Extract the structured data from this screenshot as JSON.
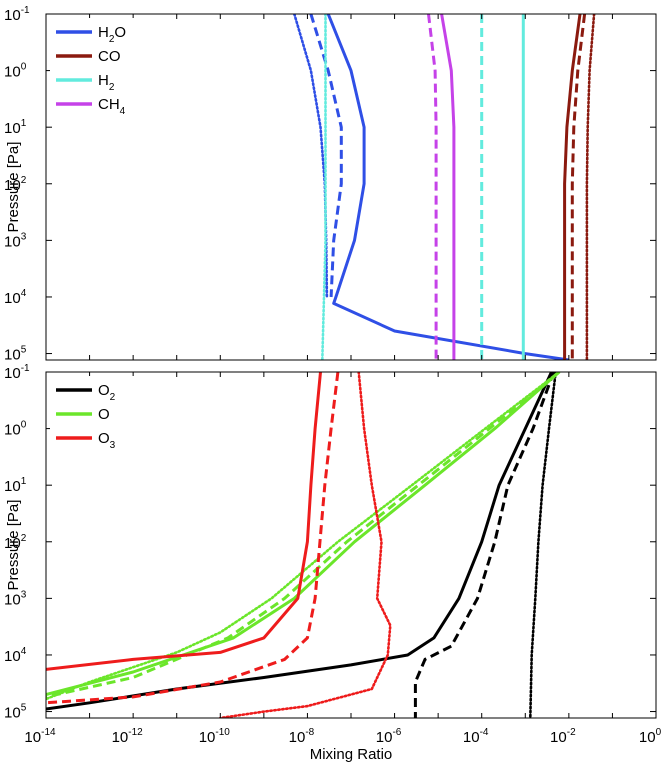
{
  "chart_data": [
    {
      "panel": "top",
      "type": "line",
      "xscale": "log",
      "yscale": "log",
      "y_inverted": true,
      "xlim": [
        1e-14,
        1
      ],
      "ylim": [
        0.1,
        130000
      ],
      "ylabel": "Pressure [Pa]",
      "xlabel": "",
      "yticks": [
        {
          "base": "10",
          "exp": "-1"
        },
        {
          "base": "10",
          "exp": "0"
        },
        {
          "base": "10",
          "exp": "1"
        },
        {
          "base": "10",
          "exp": "2"
        },
        {
          "base": "10",
          "exp": "3"
        },
        {
          "base": "10",
          "exp": "4"
        },
        {
          "base": "10",
          "exp": "5"
        }
      ],
      "legend": [
        {
          "base": "H",
          "sub": "2",
          "rest": "O",
          "color": "#2f4fe6"
        },
        {
          "base": "CO",
          "sub": "",
          "rest": "",
          "color": "#8b1a0f"
        },
        {
          "base": "H",
          "sub": "2",
          "rest": "",
          "color": "#62ebde"
        },
        {
          "base": "CH",
          "sub": "4",
          "rest": "",
          "color": "#c542e8"
        }
      ],
      "series": [
        {
          "species": "H2O",
          "style": "solid",
          "color": "#2f4fe6",
          "points": [
            [
              3e-08,
              0.1
            ],
            [
              1e-07,
              1
            ],
            [
              2e-07,
              10
            ],
            [
              2e-07,
              100
            ],
            [
              1.2e-07,
              1000
            ],
            [
              4.5e-08,
              10000
            ],
            [
              4e-08,
              13000
            ],
            [
              1e-06,
              40000
            ],
            [
              0.001,
              100000
            ],
            [
              0.01,
              130000
            ]
          ]
        },
        {
          "species": "H2O",
          "style": "dashed",
          "color": "#2f4fe6",
          "points": [
            [
              1.2e-08,
              0.1
            ],
            [
              3e-08,
              1
            ],
            [
              6e-08,
              10
            ],
            [
              6e-08,
              100
            ],
            [
              4e-08,
              1000
            ],
            [
              3.5e-08,
              10000
            ]
          ]
        },
        {
          "species": "H2O",
          "style": "dotted",
          "color": "#2f4fe6",
          "points": [
            [
              5e-09,
              0.1
            ],
            [
              1.2e-08,
              1
            ],
            [
              2e-08,
              10
            ],
            [
              2.5e-08,
              100
            ],
            [
              2.7e-08,
              1000
            ],
            [
              2.8e-08,
              10000
            ]
          ]
        },
        {
          "species": "CO",
          "style": "solid",
          "color": "#8b1a0f",
          "points": [
            [
              0.018,
              0.1
            ],
            [
              0.012,
              1
            ],
            [
              0.009,
              10
            ],
            [
              0.008,
              100
            ],
            [
              0.008,
              1000
            ],
            [
              0.008,
              10000
            ],
            [
              0.008,
              130000
            ]
          ]
        },
        {
          "species": "CO",
          "style": "dashed",
          "color": "#8b1a0f",
          "points": [
            [
              0.023,
              0.1
            ],
            [
              0.016,
              1
            ],
            [
              0.013,
              10
            ],
            [
              0.012,
              100
            ],
            [
              0.012,
              1000
            ],
            [
              0.012,
              10000
            ],
            [
              0.012,
              130000
            ]
          ]
        },
        {
          "species": "CO",
          "style": "dotted",
          "color": "#8b1a0f",
          "points": [
            [
              0.038,
              0.1
            ],
            [
              0.03,
              1
            ],
            [
              0.027,
              10
            ],
            [
              0.026,
              100
            ],
            [
              0.026,
              1000
            ],
            [
              0.026,
              10000
            ],
            [
              0.026,
              130000
            ]
          ]
        },
        {
          "species": "H2",
          "style": "solid",
          "color": "#62ebde",
          "points": [
            [
              0.0009,
              0.1
            ],
            [
              0.0009,
              130000
            ]
          ]
        },
        {
          "species": "H2",
          "style": "dashed",
          "color": "#62ebde",
          "points": [
            [
              0.0001,
              0.1
            ],
            [
              0.0001,
              130000
            ]
          ]
        },
        {
          "species": "H2",
          "style": "dotted",
          "color": "#62ebde",
          "points": [
            [
              2.6e-08,
              0.1
            ],
            [
              2.6e-08,
              1000
            ],
            [
              2.2e-08,
              130000
            ]
          ]
        },
        {
          "species": "CH4",
          "style": "solid",
          "color": "#c542e8",
          "points": [
            [
              1.2e-05,
              0.1
            ],
            [
              2e-05,
              1
            ],
            [
              2.3e-05,
              10
            ],
            [
              2.3e-05,
              100
            ],
            [
              2.3e-05,
              1000
            ],
            [
              2.3e-05,
              10000
            ],
            [
              2.3e-05,
              130000
            ]
          ]
        },
        {
          "species": "CH4",
          "style": "dashed",
          "color": "#c542e8",
          "points": [
            [
              6e-06,
              0.1
            ],
            [
              8.5e-06,
              1
            ],
            [
              9e-06,
              10
            ],
            [
              9e-06,
              100
            ],
            [
              9e-06,
              1000
            ],
            [
              9e-06,
              10000
            ],
            [
              9e-06,
              130000
            ]
          ]
        }
      ]
    },
    {
      "panel": "bottom",
      "type": "line",
      "xscale": "log",
      "yscale": "log",
      "y_inverted": true,
      "xlim": [
        1e-14,
        1
      ],
      "ylim": [
        0.1,
        130000
      ],
      "ylabel": "Pressure [Pa]",
      "xlabel": "Mixing Ratio",
      "xticks": [
        {
          "base": "10",
          "exp": "-14"
        },
        {
          "base": "10",
          "exp": "-12"
        },
        {
          "base": "10",
          "exp": "-10"
        },
        {
          "base": "10",
          "exp": "-8"
        },
        {
          "base": "10",
          "exp": "-6"
        },
        {
          "base": "10",
          "exp": "-4"
        },
        {
          "base": "10",
          "exp": "-2"
        },
        {
          "base": "10",
          "exp": "0"
        }
      ],
      "yticks": [
        {
          "base": "10",
          "exp": "-1"
        },
        {
          "base": "10",
          "exp": "0"
        },
        {
          "base": "10",
          "exp": "1"
        },
        {
          "base": "10",
          "exp": "2"
        },
        {
          "base": "10",
          "exp": "3"
        },
        {
          "base": "10",
          "exp": "4"
        },
        {
          "base": "10",
          "exp": "5"
        }
      ],
      "legend": [
        {
          "base": "O",
          "sub": "2",
          "rest": "",
          "color": "#000000"
        },
        {
          "base": "O",
          "sub": "",
          "rest": "",
          "color": "#6be62a"
        },
        {
          "base": "O",
          "sub": "3",
          "rest": "",
          "color": "#ee1c1c"
        }
      ],
      "series": [
        {
          "species": "O2",
          "style": "solid",
          "color": "#000000",
          "points": [
            [
              0.004,
              0.1
            ],
            [
              0.001,
              1
            ],
            [
              0.00025,
              10
            ],
            [
              0.0001,
              100
            ],
            [
              3e-05,
              1000
            ],
            [
              8e-06,
              5000
            ],
            [
              2e-06,
              10000
            ],
            [
              1e-07,
              15000
            ],
            [
              1e-09,
              25000
            ],
            [
              1e-11,
              40000
            ],
            [
              1e-13,
              70000
            ],
            [
              1e-14,
              90000
            ]
          ]
        },
        {
          "species": "O2",
          "style": "dashed",
          "color": "#000000",
          "points": [
            [
              0.0045,
              0.1
            ],
            [
              0.0015,
              1
            ],
            [
              0.0004,
              10
            ],
            [
              0.0002,
              100
            ],
            [
              8e-05,
              1000
            ],
            [
              2e-05,
              7000
            ],
            [
              5e-06,
              12000
            ],
            [
              3e-06,
              30000
            ],
            [
              3e-06,
              130000
            ]
          ]
        },
        {
          "species": "O2",
          "style": "dotted",
          "color": "#000000",
          "points": [
            [
              0.005,
              0.1
            ],
            [
              0.0035,
              1
            ],
            [
              0.0025,
              10
            ],
            [
              0.002,
              100
            ],
            [
              0.0017,
              1000
            ],
            [
              0.0014,
              10000
            ],
            [
              0.0013,
              130000
            ]
          ]
        },
        {
          "species": "O",
          "style": "solid",
          "color": "#6be62a",
          "points": [
            [
              0.006,
              0.1
            ],
            [
              0.0002,
              1
            ],
            [
              5e-06,
              10
            ],
            [
              1.2e-07,
              100
            ],
            [
              5e-09,
              1000
            ],
            [
              2e-10,
              5000
            ],
            [
              1e-12,
              20000
            ],
            [
              1e-14,
              50000
            ]
          ]
        },
        {
          "species": "O",
          "style": "dashed",
          "color": "#6be62a",
          "points": [
            [
              0.006,
              0.1
            ],
            [
              0.00015,
              1
            ],
            [
              3.5e-06,
              10
            ],
            [
              8e-08,
              100
            ],
            [
              3e-09,
              1000
            ],
            [
              1.5e-10,
              5000
            ],
            [
              1e-12,
              25000
            ],
            [
              1e-14,
              55000
            ]
          ]
        },
        {
          "species": "O",
          "style": "dotted",
          "color": "#6be62a",
          "points": [
            [
              0.006,
              0.1
            ],
            [
              0.00012,
              1
            ],
            [
              2.5e-06,
              10
            ],
            [
              5e-08,
              100
            ],
            [
              1.5e-09,
              1000
            ],
            [
              1e-10,
              4000
            ],
            [
              1e-11,
              9000
            ],
            [
              1e-13,
              30000
            ],
            [
              1e-14,
              60000
            ]
          ]
        },
        {
          "species": "O3",
          "style": "solid",
          "color": "#ee1c1c",
          "points": [
            [
              2e-08,
              0.1
            ],
            [
              1.5e-08,
              1
            ],
            [
              1.2e-08,
              10
            ],
            [
              1e-08,
              100
            ],
            [
              6e-09,
              1000
            ],
            [
              1e-09,
              5000
            ],
            [
              1e-10,
              9000
            ],
            [
              1e-12,
              12000
            ],
            [
              1e-14,
              18000
            ]
          ]
        },
        {
          "species": "O3",
          "style": "dashed",
          "color": "#ee1c1c",
          "points": [
            [
              5e-08,
              0.1
            ],
            [
              3.5e-08,
              1
            ],
            [
              2.5e-08,
              10
            ],
            [
              1.5e-08,
              1000
            ],
            [
              1e-08,
              5000
            ],
            [
              3e-09,
              12000
            ],
            [
              1e-10,
              30000
            ],
            [
              1e-12,
              55000
            ],
            [
              1e-14,
              70000
            ]
          ]
        },
        {
          "species": "O3",
          "style": "dotted",
          "color": "#ee1c1c",
          "points": [
            [
              1.5e-07,
              0.1
            ],
            [
              2e-07,
              1
            ],
            [
              3e-07,
              10
            ],
            [
              5e-07,
              100
            ],
            [
              4e-07,
              1000
            ],
            [
              8e-07,
              3000
            ],
            [
              7e-07,
              10000
            ],
            [
              3e-07,
              40000
            ],
            [
              1e-08,
              80000
            ],
            [
              1e-09,
              100000
            ],
            [
              1e-10,
              130000
            ]
          ]
        }
      ]
    }
  ]
}
